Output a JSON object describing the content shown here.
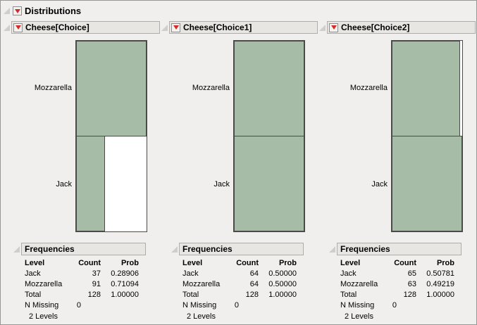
{
  "report": {
    "title": "Distributions"
  },
  "colors": {
    "bar_fill": "#a6bca6",
    "accent_red": "#d42a2a",
    "header_bg": "#e7e6e3"
  },
  "panels": [
    {
      "title": "Cheese[Choice]",
      "chart": {
        "categories": [
          "Mozzarella",
          "Jack"
        ],
        "counts": [
          91,
          37
        ],
        "axis_max": 91
      },
      "frequencies": {
        "title": "Frequencies",
        "headers": [
          "Level",
          "Count",
          "Prob"
        ],
        "rows": [
          [
            "Jack",
            "37",
            "0.28906"
          ],
          [
            "Mozzarella",
            "91",
            "0.71094"
          ],
          [
            "Total",
            "128",
            "1.00000"
          ],
          [
            "N Missing",
            "0",
            ""
          ]
        ],
        "levels": "2 Levels"
      }
    },
    {
      "title": "Cheese[Choice1]",
      "chart": {
        "categories": [
          "Mozzarella",
          "Jack"
        ],
        "counts": [
          64,
          64
        ],
        "axis_max": 64
      },
      "frequencies": {
        "title": "Frequencies",
        "headers": [
          "Level",
          "Count",
          "Prob"
        ],
        "rows": [
          [
            "Jack",
            "64",
            "0.50000"
          ],
          [
            "Mozzarella",
            "64",
            "0.50000"
          ],
          [
            "Total",
            "128",
            "1.00000"
          ],
          [
            "N Missing",
            "0",
            ""
          ]
        ],
        "levels": "2 Levels"
      }
    },
    {
      "title": "Cheese[Choice2]",
      "chart": {
        "categories": [
          "Mozzarella",
          "Jack"
        ],
        "counts": [
          63,
          65
        ],
        "axis_max": 65
      },
      "frequencies": {
        "title": "Frequencies",
        "headers": [
          "Level",
          "Count",
          "Prob"
        ],
        "rows": [
          [
            "Jack",
            "65",
            "0.50781"
          ],
          [
            "Mozzarella",
            "63",
            "0.49219"
          ],
          [
            "Total",
            "128",
            "1.00000"
          ],
          [
            "N Missing",
            "0",
            ""
          ]
        ],
        "levels": "2 Levels"
      }
    }
  ],
  "chart_data": [
    {
      "type": "bar",
      "orientation": "horizontal",
      "title": "Cheese[Choice]",
      "categories": [
        "Mozzarella",
        "Jack"
      ],
      "values": [
        91,
        37
      ]
    },
    {
      "type": "bar",
      "orientation": "horizontal",
      "title": "Cheese[Choice1]",
      "categories": [
        "Mozzarella",
        "Jack"
      ],
      "values": [
        64,
        64
      ]
    },
    {
      "type": "bar",
      "orientation": "horizontal",
      "title": "Cheese[Choice2]",
      "categories": [
        "Mozzarella",
        "Jack"
      ],
      "values": [
        63,
        65
      ]
    }
  ]
}
